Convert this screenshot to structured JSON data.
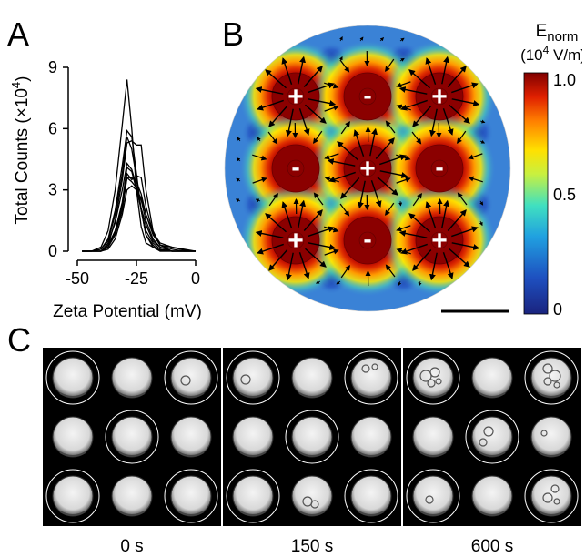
{
  "panels": {
    "a": "A",
    "b": "B",
    "c": "C"
  },
  "chart_data": {
    "type": "line",
    "xlabel": "Zeta Potential (mV)",
    "ylabel": "Total Counts (×10",
    "ylabel_exp": "4",
    "ylabel_close": ")",
    "xlim": [
      -50,
      0
    ],
    "ylim": [
      0,
      9
    ],
    "x_ticks": [
      "-50",
      "-25",
      "0"
    ],
    "y_ticks": [
      "0",
      "3",
      "6",
      "9"
    ],
    "x_tick_values": [
      -50,
      -25,
      0
    ],
    "y_tick_values": [
      0,
      3,
      6,
      9
    ],
    "x": [
      -48,
      -44,
      -40,
      -37,
      -34,
      -31,
      -29,
      -27,
      -25,
      -23,
      -21,
      -18,
      -15,
      -10,
      -5,
      0
    ],
    "series": [
      {
        "values": [
          0,
          0,
          0.2,
          1.0,
          3.0,
          6.2,
          8.4,
          6.0,
          3.0,
          1.2,
          0.4,
          0.2,
          0.05,
          0,
          0,
          0
        ]
      },
      {
        "values": [
          0,
          0,
          0.1,
          0.6,
          2.0,
          4.2,
          5.9,
          5.6,
          3.8,
          2.0,
          0.8,
          0.2,
          0,
          0,
          0,
          0
        ]
      },
      {
        "values": [
          0,
          0,
          0,
          0.3,
          1.5,
          3.5,
          5.3,
          5.4,
          5.2,
          5.2,
          3.0,
          1.0,
          0.3,
          0,
          0,
          0
        ]
      },
      {
        "values": [
          0,
          0,
          0.1,
          0.5,
          1.8,
          3.8,
          5.6,
          5.0,
          3.6,
          2.0,
          0.8,
          0.3,
          0,
          0,
          0,
          0
        ]
      },
      {
        "values": [
          0,
          0,
          0,
          0.4,
          1.4,
          3.0,
          4.3,
          4.0,
          3.2,
          2.0,
          1.0,
          0.4,
          0.1,
          0,
          0,
          0
        ]
      },
      {
        "values": [
          0,
          0,
          0,
          0.2,
          1.0,
          2.4,
          4.1,
          3.9,
          3.0,
          2.1,
          1.3,
          0.5,
          0.2,
          0,
          0,
          0
        ]
      },
      {
        "values": [
          0,
          0,
          0,
          0.2,
          0.9,
          2.2,
          3.8,
          3.5,
          3.7,
          3.6,
          2.2,
          0.9,
          0.3,
          0.1,
          0,
          0
        ]
      },
      {
        "values": [
          0,
          0,
          0,
          0.3,
          1.0,
          2.3,
          3.6,
          3.4,
          3.1,
          2.5,
          1.5,
          0.6,
          0.2,
          0,
          0,
          0
        ]
      },
      {
        "values": [
          0,
          0,
          0,
          0.1,
          0.6,
          1.8,
          3.0,
          3.2,
          3.0,
          2.6,
          1.8,
          0.9,
          0.4,
          0.2,
          0.05,
          0
        ]
      },
      {
        "values": [
          0,
          0,
          0,
          0.2,
          0.8,
          2.0,
          3.6,
          3.6,
          3.4,
          2.8,
          1.8,
          0.8,
          0.3,
          0.2,
          0.1,
          0
        ]
      }
    ]
  },
  "field_map": {
    "cbar_title": "E",
    "cbar_sub": "norm",
    "cbar_unit_open": "(10",
    "cbar_unit_exp": "4",
    "cbar_unit_close": " V/m)",
    "cbar_ticks": [
      "1.0",
      "0.5",
      "0"
    ],
    "cbar_tick_values": [
      1.0,
      0.5,
      0
    ],
    "electrodes": [
      {
        "sign": "+",
        "row": 0,
        "col": 0
      },
      {
        "sign": "-",
        "row": 0,
        "col": 1
      },
      {
        "sign": "+",
        "row": 0,
        "col": 2
      },
      {
        "sign": "-",
        "row": 1,
        "col": 0
      },
      {
        "sign": "+",
        "row": 1,
        "col": 1
      },
      {
        "sign": "-",
        "row": 1,
        "col": 2
      },
      {
        "sign": "+",
        "row": 2,
        "col": 0
      },
      {
        "sign": "-",
        "row": 2,
        "col": 1
      },
      {
        "sign": "+",
        "row": 2,
        "col": 2
      }
    ],
    "colors": {
      "high": "#8b0000",
      "mid": "#ffd000",
      "low": "#1a3fa8",
      "bg": "#3a82d6"
    }
  },
  "timelapse": {
    "frames": [
      {
        "label": "0 s",
        "circled": [
          1,
          0,
          1,
          0,
          1,
          0,
          1,
          0,
          1
        ],
        "bubbles": [
          [
            2,
            [
              [
                -6,
                3,
                5
              ]
            ]
          ]
        ]
      },
      {
        "label": "150 s",
        "circled": [
          1,
          0,
          1,
          0,
          1,
          0,
          1,
          0,
          1
        ],
        "bubbles": [
          [
            0,
            [
              [
                -8,
                2,
                5
              ]
            ]
          ],
          [
            2,
            [
              [
                -6,
                -10,
                4
              ],
              [
                4,
                -12,
                3
              ]
            ]
          ],
          [
            7,
            [
              [
                -5,
                6,
                5
              ],
              [
                3,
                9,
                4
              ]
            ]
          ]
        ]
      },
      {
        "label": "600 s",
        "circled": [
          1,
          0,
          1,
          0,
          1,
          0,
          1,
          0,
          1
        ],
        "bubbles": [
          [
            0,
            [
              [
                -8,
                -2,
                6
              ],
              [
                2,
                -6,
                5
              ],
              [
                -2,
                6,
                4
              ],
              [
                6,
                4,
                3
              ]
            ]
          ],
          [
            2,
            [
              [
                -4,
                -10,
                5
              ],
              [
                4,
                -2,
                6
              ],
              [
                -4,
                4,
                4
              ],
              [
                6,
                8,
                3
              ]
            ]
          ],
          [
            4,
            [
              [
                -4,
                -6,
                5
              ],
              [
                -10,
                6,
                4
              ]
            ]
          ],
          [
            5,
            [
              [
                -8,
                -4,
                3
              ]
            ]
          ],
          [
            6,
            [
              [
                -4,
                4,
                4
              ]
            ]
          ],
          [
            8,
            [
              [
                -4,
                2,
                5
              ],
              [
                4,
                -8,
                4
              ],
              [
                6,
                6,
                3
              ]
            ]
          ]
        ]
      }
    ]
  }
}
